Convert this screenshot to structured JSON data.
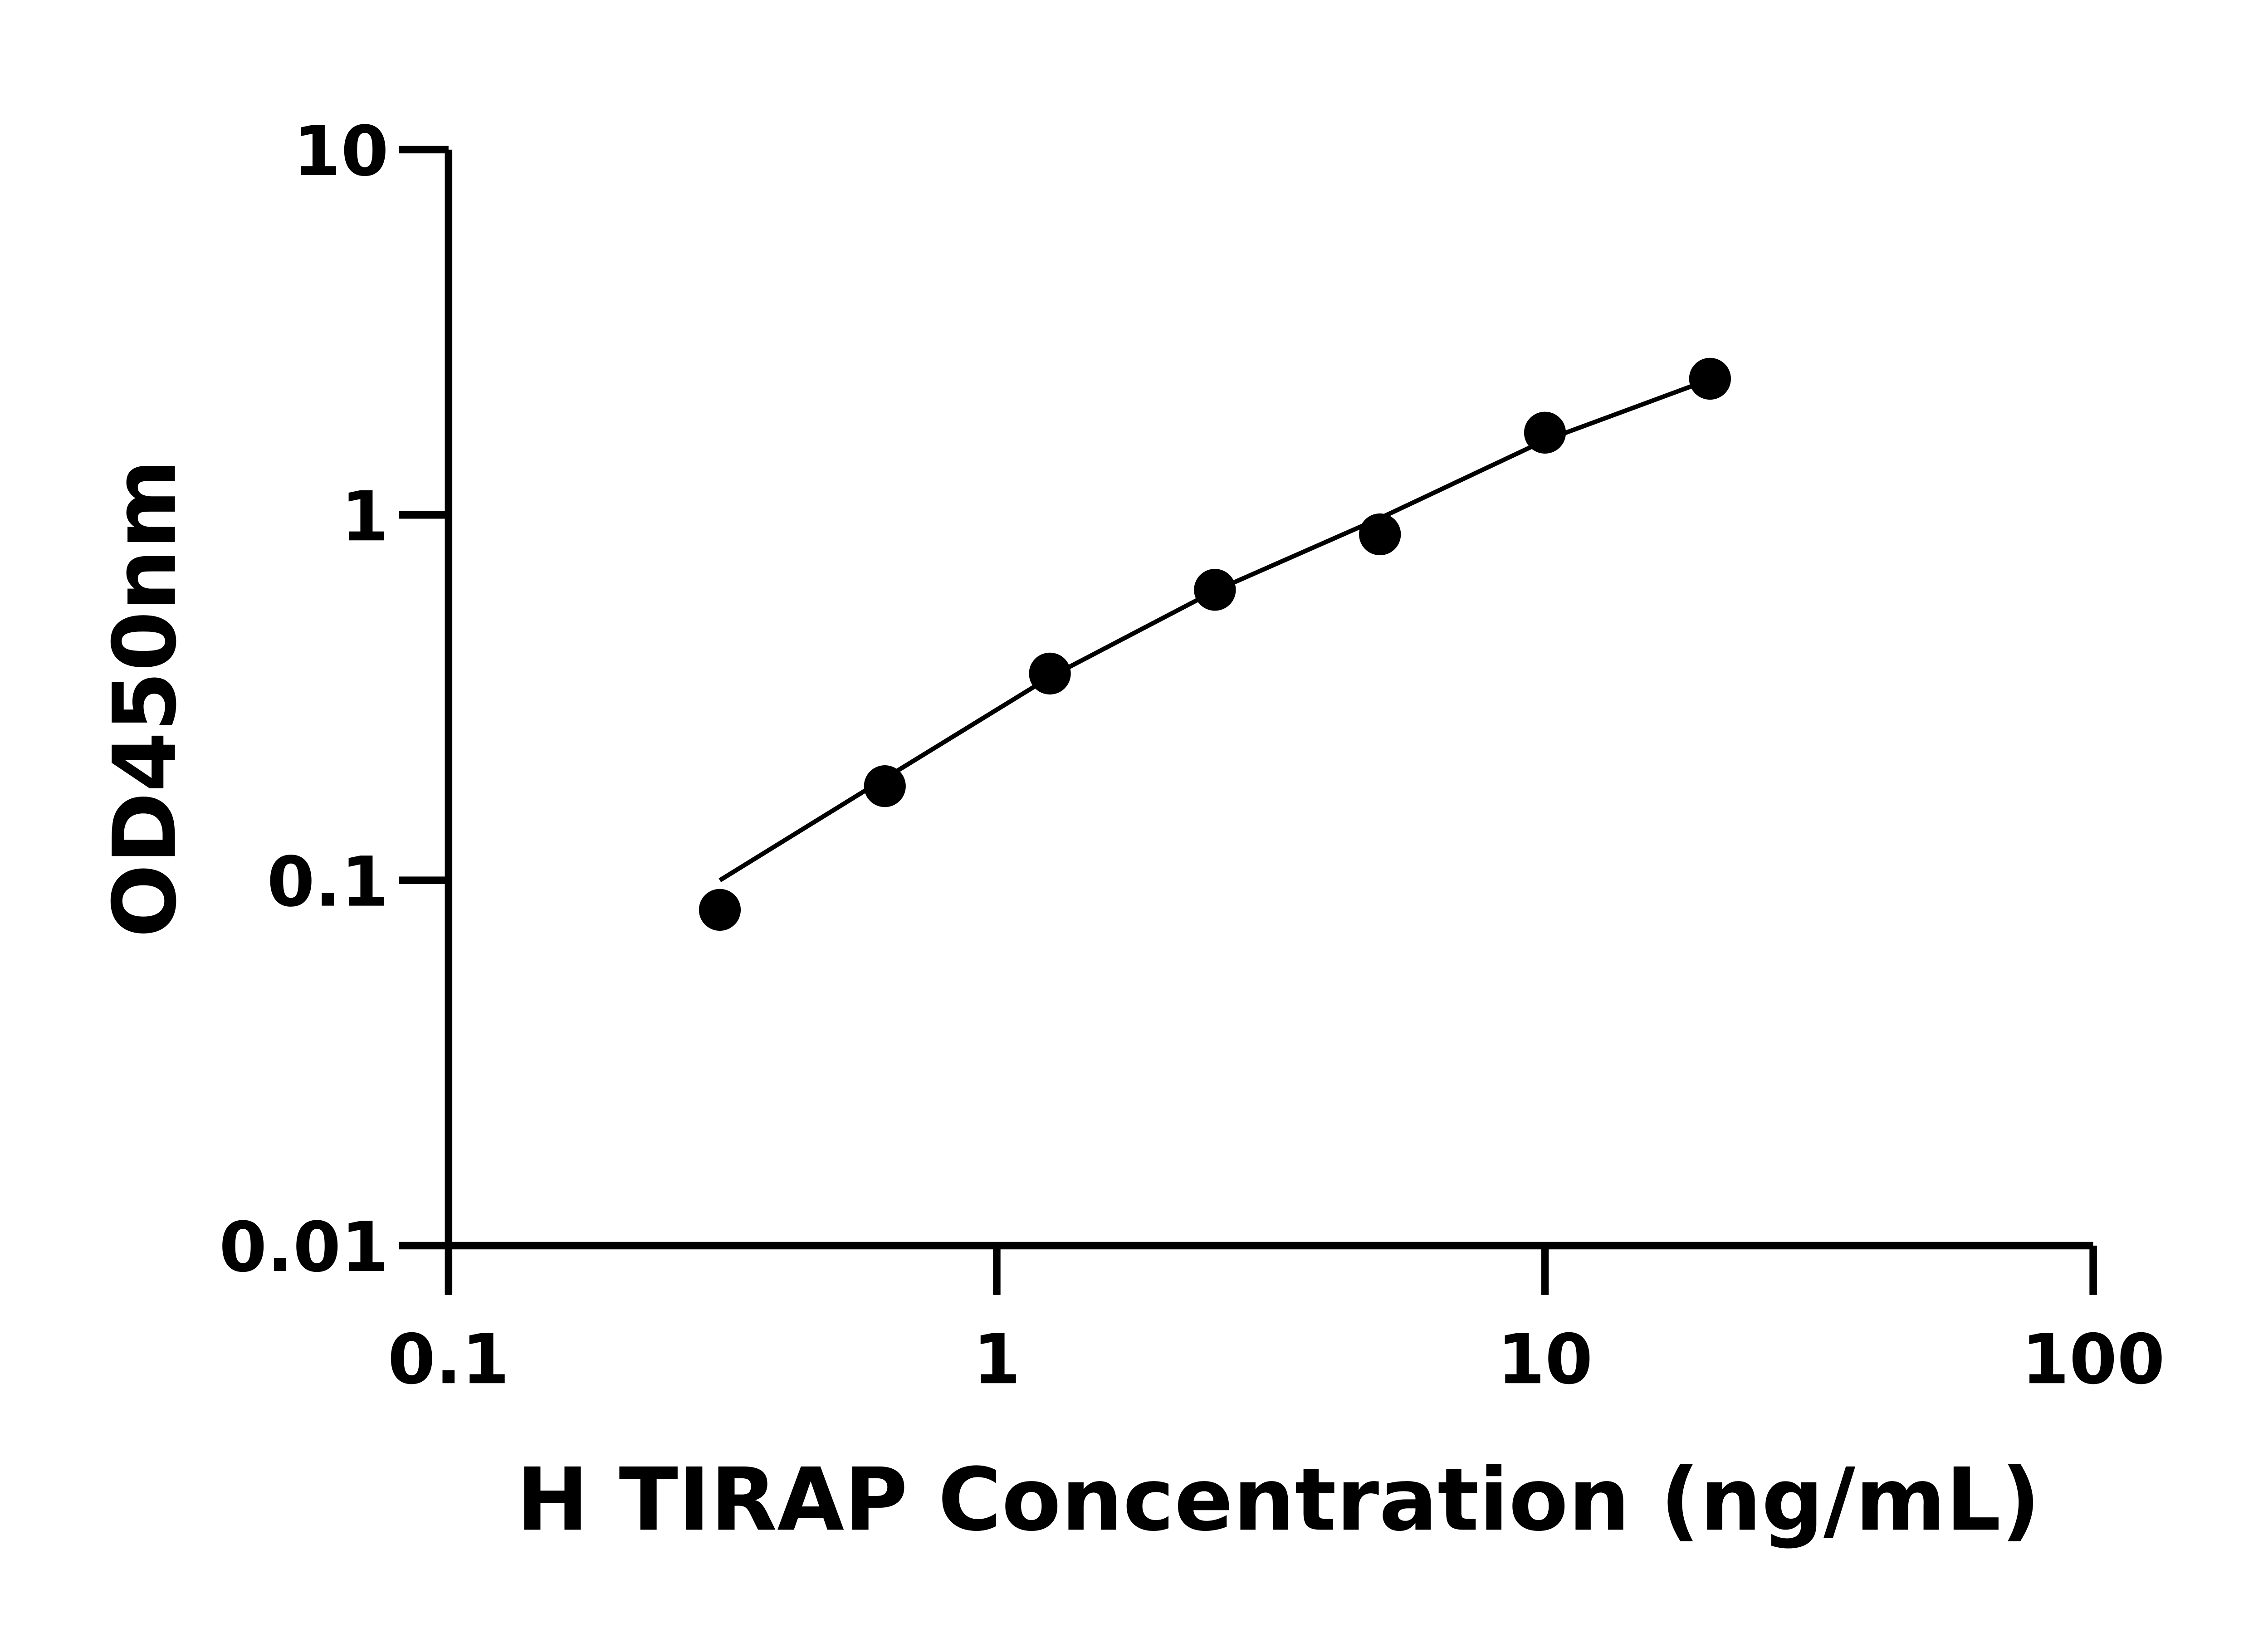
{
  "chart_data": {
    "type": "scatter",
    "title": "",
    "xlabel": "H TIRAP Concentration (ng/mL)",
    "ylabel": "OD450nm",
    "x_scale": "log",
    "y_scale": "log",
    "xlim": [
      0.1,
      100
    ],
    "ylim": [
      0.01,
      10
    ],
    "x_ticks": [
      "0.1",
      "1",
      "10",
      "100"
    ],
    "y_ticks": [
      "0.01",
      "0.1",
      "1",
      "10"
    ],
    "grid": false,
    "legend": "none",
    "colors": {
      "points": "#000000",
      "line": "#000000"
    },
    "series": [
      {
        "type": "scatter",
        "x": [
          0.3125,
          0.625,
          1.25,
          2.5,
          5,
          10,
          20
        ],
        "y": [
          0.083,
          0.181,
          0.368,
          0.624,
          0.885,
          1.68,
          2.36
        ]
      },
      {
        "type": "line",
        "x": [
          0.3125,
          0.625,
          1.25,
          2.5,
          5,
          10,
          20
        ],
        "y": [
          0.1,
          0.19,
          0.36,
          0.62,
          0.98,
          1.6,
          2.35
        ]
      }
    ]
  }
}
